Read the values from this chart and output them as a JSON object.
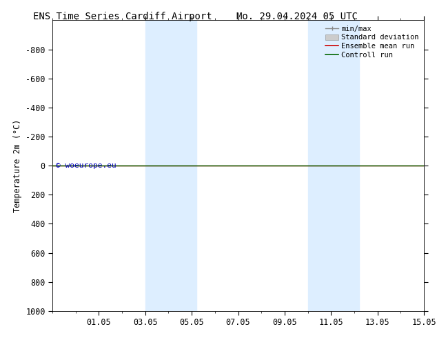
{
  "title_left": "ENS Time Series Cardiff Airport",
  "title_right": "Mo. 29.04.2024 05 UTC",
  "ylabel": "Temperature 2m (°C)",
  "xlim": [
    0.0,
    16.0
  ],
  "ylim": [
    1000,
    -1000
  ],
  "yticks": [
    -800,
    -600,
    -400,
    -200,
    0,
    200,
    400,
    600,
    800,
    1000
  ],
  "xtick_labels": [
    "01.05",
    "03.05",
    "05.05",
    "07.05",
    "09.05",
    "11.05",
    "13.05",
    "15.05"
  ],
  "xtick_positions": [
    2,
    4,
    6,
    8,
    10,
    12,
    14,
    16
  ],
  "shade_bands": [
    {
      "xmin": 4.0,
      "xmax": 6.2,
      "color": "#ddeeff"
    },
    {
      "xmin": 11.0,
      "xmax": 13.2,
      "color": "#ddeeff"
    }
  ],
  "hline_green": {
    "y": 0,
    "color": "#006600",
    "lw": 1.0
  },
  "hline_red": {
    "y": 0,
    "color": "#cc0000",
    "lw": 1.0
  },
  "copyright_text": "© woeurope.eu",
  "copyright_color": "#0000bb",
  "legend_entries": [
    {
      "label": "min/max",
      "type": "minmax"
    },
    {
      "label": "Standard deviation",
      "type": "stddev"
    },
    {
      "label": "Ensemble mean run",
      "type": "line",
      "color": "#cc0000"
    },
    {
      "label": "Controll run",
      "type": "line",
      "color": "#006600"
    }
  ],
  "bg_color": "white",
  "title_fontsize": 10,
  "axis_fontsize": 8.5,
  "legend_fontsize": 7.5
}
